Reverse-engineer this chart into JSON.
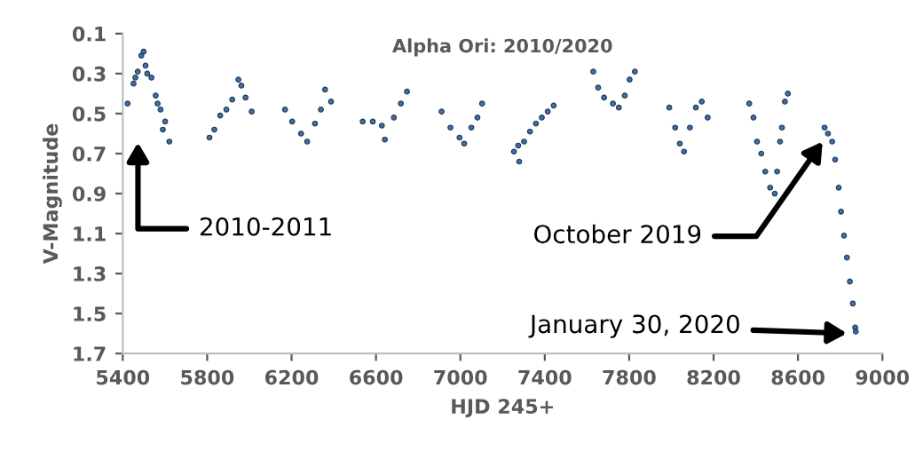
{
  "chart_data": {
    "type": "scatter",
    "title": "Alpha Ori: 2010/2020",
    "xlabel": "HJD 245+",
    "ylabel": "V-Magnitude",
    "xlim": [
      5400,
      9000
    ],
    "xticks": [
      5400,
      5800,
      6200,
      6600,
      7000,
      7400,
      7800,
      8200,
      8600,
      9000
    ],
    "ylim": [
      1.7,
      0.1
    ],
    "yticks": [
      0.1,
      0.3,
      0.5,
      0.7,
      0.9,
      1.1,
      1.3,
      1.5,
      1.7
    ],
    "grid": false,
    "marker": "circle",
    "series": [
      {
        "color": "#3d6fa8",
        "x": [
          5423,
          5451,
          5460,
          5471,
          5488,
          5499,
          5508,
          5516,
          5536,
          5556,
          5565,
          5579,
          5590,
          5601,
          5621,
          5811,
          5834,
          5862,
          5891,
          5919,
          5948,
          5962,
          5982,
          6011,
          6169,
          6203,
          6245,
          6274,
          6311,
          6339,
          6359,
          6387,
          6537,
          6585,
          6628,
          6642,
          6685,
          6718,
          6747,
          6911,
          6953,
          6996,
          7018,
          7052,
          7081,
          7103,
          7254,
          7274,
          7279,
          7302,
          7330,
          7358,
          7386,
          7414,
          7442,
          7630,
          7653,
          7681,
          7723,
          7751,
          7779,
          7802,
          7827,
          7990,
          8018,
          8040,
          8060,
          8088,
          8116,
          8144,
          8172,
          8369,
          8389,
          8406,
          8426,
          8445,
          8468,
          8490,
          8501,
          8515,
          8524,
          8538,
          8552,
          8726,
          8742,
          8762,
          8776,
          8793,
          8804,
          8818,
          8832,
          8846,
          8860,
          8871,
          8874
        ],
        "values": [
          0.45,
          0.35,
          0.32,
          0.29,
          0.21,
          0.19,
          0.26,
          0.3,
          0.32,
          0.41,
          0.45,
          0.48,
          0.58,
          0.54,
          0.64,
          0.62,
          0.58,
          0.51,
          0.48,
          0.43,
          0.33,
          0.36,
          0.42,
          0.49,
          0.48,
          0.54,
          0.6,
          0.64,
          0.55,
          0.48,
          0.38,
          0.44,
          0.54,
          0.54,
          0.56,
          0.63,
          0.52,
          0.45,
          0.39,
          0.49,
          0.57,
          0.62,
          0.65,
          0.57,
          0.52,
          0.45,
          0.69,
          0.66,
          0.74,
          0.64,
          0.59,
          0.55,
          0.52,
          0.49,
          0.46,
          0.29,
          0.37,
          0.42,
          0.45,
          0.47,
          0.41,
          0.33,
          0.29,
          0.47,
          0.57,
          0.65,
          0.69,
          0.57,
          0.47,
          0.44,
          0.52,
          0.45,
          0.52,
          0.64,
          0.7,
          0.79,
          0.87,
          0.9,
          0.79,
          0.64,
          0.57,
          0.44,
          0.4,
          0.57,
          0.6,
          0.64,
          0.73,
          0.87,
          0.99,
          1.11,
          1.22,
          1.34,
          1.45,
          1.57,
          1.59
        ]
      }
    ],
    "annotations": [
      "2010-2011",
      {
        "text": "October 2019",
        "x": 8730,
        "y": 0.62
      },
      {
        "text": "January 30, 2020",
        "x": 8855,
        "y": 1.6
      }
    ]
  }
}
